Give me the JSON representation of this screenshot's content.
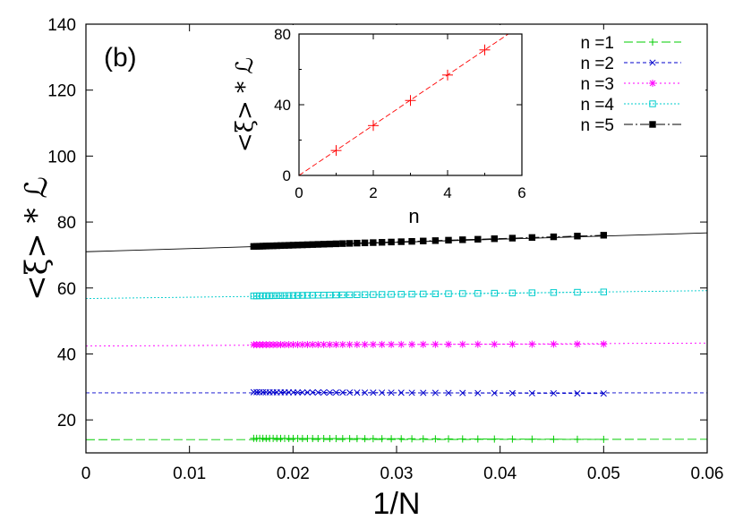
{
  "panel_label": "(b)",
  "chart_data": [
    {
      "type": "scatter",
      "xlabel": "1/N",
      "ylabel": "<ξ> * ℒ",
      "xlim": [
        0,
        0.06
      ],
      "ylim": [
        10,
        140
      ],
      "xticks": [
        "0",
        "0.01",
        "0.02",
        "0.03",
        "0.04",
        "0.05",
        "0.06"
      ],
      "yticks": [
        "20",
        "40",
        "60",
        "80",
        "100",
        "120",
        "140"
      ],
      "grid": false,
      "legend_position": "top-right",
      "series": [
        {
          "name": "n =1",
          "color": "#00cc00",
          "marker": "plus",
          "dash": "10,4",
          "x_range": [
            0.0162,
            0.05
          ],
          "y_start": 14.4,
          "y_end": 14.1,
          "fit_intercept": 14.0,
          "fit_slope": 2
        },
        {
          "name": "n =2",
          "color": "#0000cc",
          "marker": "cross",
          "dash": "4,3",
          "x_range": [
            0.0162,
            0.05
          ],
          "y_start": 28.4,
          "y_end": 28.0,
          "fit_intercept": 28.2,
          "fit_slope": 0
        },
        {
          "name": "n =3",
          "color": "#ff00ff",
          "marker": "star",
          "dash": "2,3",
          "x_range": [
            0.0162,
            0.05
          ],
          "y_start": 42.8,
          "y_end": 43.0,
          "fit_intercept": 42.4,
          "fit_slope": 15
        },
        {
          "name": "n =4",
          "color": "#00cccc",
          "marker": "square",
          "dash": "2,2",
          "x_range": [
            0.0162,
            0.05
          ],
          "y_start": 57.6,
          "y_end": 58.8,
          "fit_intercept": 56.8,
          "fit_slope": 40
        },
        {
          "name": "n =5",
          "color": "#000000",
          "marker": "filled-square",
          "dash": "10,3,2,3",
          "x_range": [
            0.0162,
            0.05
          ],
          "y_start": 72.6,
          "y_end": 76.0,
          "fit_intercept": 71.0,
          "fit_slope": 95
        }
      ]
    },
    {
      "type": "scatter",
      "xlabel": "n",
      "ylabel": "<ξ> * ℒ",
      "xlim": [
        0,
        6
      ],
      "ylim": [
        0,
        80
      ],
      "xticks": [
        "0",
        "2",
        "4",
        "6"
      ],
      "yticks": [
        "0",
        "40",
        "80"
      ],
      "series": [
        {
          "color": "#ff0000",
          "marker": "plus",
          "x": [
            1,
            2,
            3,
            4,
            5
          ],
          "y": [
            14.1,
            28.2,
            42.4,
            56.8,
            71.0
          ],
          "fit_slope": 14.2
        }
      ]
    }
  ]
}
